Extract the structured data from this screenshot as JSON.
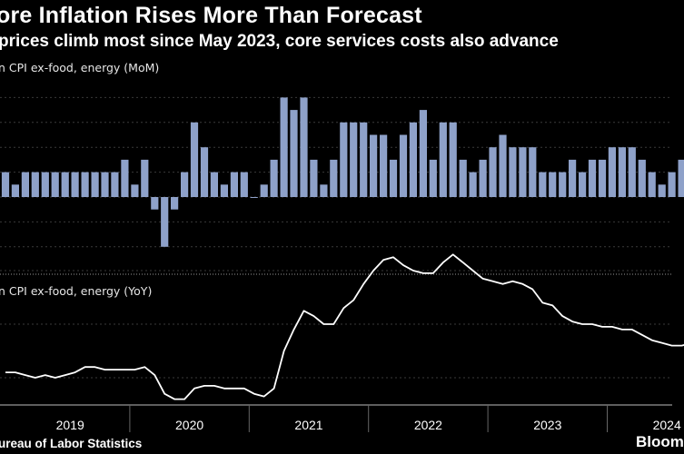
{
  "header": {
    "title": "ore Inflation Rises More Than Forecast",
    "subtitle": "prices climb most since May 2023, core services costs also advance"
  },
  "footer": {
    "source": "ureau of Labor Statistics",
    "brand": "Bloom"
  },
  "colors": {
    "background": "#000000",
    "bar": "#8ea1c9",
    "line": "#ffffff",
    "grid": "#3a3a3a"
  },
  "chart_data": [
    {
      "type": "bar",
      "ylabel": "n CPI ex-food, energy (MoM)",
      "grid": true,
      "x": [
        "2018-12",
        "2019-01",
        "2019-02",
        "2019-03",
        "2019-04",
        "2019-05",
        "2019-06",
        "2019-07",
        "2019-08",
        "2019-09",
        "2019-10",
        "2019-11",
        "2019-12",
        "2020-01",
        "2020-02",
        "2020-03",
        "2020-04",
        "2020-05",
        "2020-06",
        "2020-07",
        "2020-08",
        "2020-09",
        "2020-10",
        "2020-11",
        "2020-12",
        "2021-01",
        "2021-02",
        "2021-03",
        "2021-04",
        "2021-05",
        "2021-06",
        "2021-07",
        "2021-08",
        "2021-09",
        "2021-10",
        "2021-11",
        "2021-12",
        "2022-01",
        "2022-02",
        "2022-03",
        "2022-04",
        "2022-05",
        "2022-06",
        "2022-07",
        "2022-08",
        "2022-09",
        "2022-10",
        "2022-11",
        "2022-12",
        "2023-01",
        "2023-02",
        "2023-03",
        "2023-04",
        "2023-05",
        "2023-06",
        "2023-07",
        "2023-08",
        "2023-09",
        "2023-10",
        "2023-11",
        "2023-12",
        "2024-01",
        "2024-02",
        "2024-03",
        "2024-04",
        "2024-05",
        "2024-06",
        "2024-07",
        "2024-08",
        "2024-09"
      ],
      "values": [
        0.2,
        0.1,
        0.2,
        0.2,
        0.2,
        0.2,
        0.2,
        0.2,
        0.2,
        0.2,
        0.2,
        0.2,
        0.3,
        0.1,
        0.3,
        -0.1,
        -0.4,
        -0.1,
        0.2,
        0.6,
        0.4,
        0.2,
        0.1,
        0.2,
        0.2,
        0.0,
        0.1,
        0.3,
        0.8,
        0.7,
        0.8,
        0.3,
        0.1,
        0.3,
        0.6,
        0.6,
        0.6,
        0.5,
        0.5,
        0.3,
        0.5,
        0.6,
        0.7,
        0.3,
        0.6,
        0.6,
        0.3,
        0.2,
        0.3,
        0.4,
        0.5,
        0.4,
        0.4,
        0.4,
        0.2,
        0.2,
        0.2,
        0.3,
        0.2,
        0.3,
        0.3,
        0.4,
        0.4,
        0.4,
        0.3,
        0.2,
        0.1,
        0.2,
        0.3,
        0.3
      ]
    },
    {
      "type": "line",
      "ylabel": "n CPI ex-food, energy (YoY)",
      "grid": true,
      "x": [
        "2018-12",
        "2019-01",
        "2019-02",
        "2019-03",
        "2019-04",
        "2019-05",
        "2019-06",
        "2019-07",
        "2019-08",
        "2019-09",
        "2019-10",
        "2019-11",
        "2019-12",
        "2020-01",
        "2020-02",
        "2020-03",
        "2020-04",
        "2020-05",
        "2020-06",
        "2020-07",
        "2020-08",
        "2020-09",
        "2020-10",
        "2020-11",
        "2020-12",
        "2021-01",
        "2021-02",
        "2021-03",
        "2021-04",
        "2021-05",
        "2021-06",
        "2021-07",
        "2021-08",
        "2021-09",
        "2021-10",
        "2021-11",
        "2021-12",
        "2022-01",
        "2022-02",
        "2022-03",
        "2022-04",
        "2022-05",
        "2022-06",
        "2022-07",
        "2022-08",
        "2022-09",
        "2022-10",
        "2022-11",
        "2022-12",
        "2023-01",
        "2023-02",
        "2023-03",
        "2023-04",
        "2023-05",
        "2023-06",
        "2023-07",
        "2023-08",
        "2023-09",
        "2023-10",
        "2023-11",
        "2023-12",
        "2024-01",
        "2024-02",
        "2024-03",
        "2024-04",
        "2024-05",
        "2024-06",
        "2024-07",
        "2024-08",
        "2024-09"
      ],
      "values": [
        2.2,
        2.2,
        2.1,
        2.0,
        2.1,
        2.0,
        2.1,
        2.2,
        2.4,
        2.4,
        2.3,
        2.3,
        2.3,
        2.3,
        2.4,
        2.1,
        1.4,
        1.2,
        1.2,
        1.6,
        1.7,
        1.7,
        1.6,
        1.6,
        1.6,
        1.4,
        1.3,
        1.6,
        3.0,
        3.8,
        4.5,
        4.3,
        4.0,
        4.0,
        4.6,
        4.9,
        5.5,
        6.0,
        6.4,
        6.5,
        6.2,
        6.0,
        5.9,
        5.9,
        6.3,
        6.6,
        6.3,
        6.0,
        5.7,
        5.6,
        5.5,
        5.6,
        5.5,
        5.3,
        4.8,
        4.7,
        4.3,
        4.1,
        4.0,
        4.0,
        3.9,
        3.9,
        3.8,
        3.8,
        3.6,
        3.4,
        3.3,
        3.2,
        3.2,
        3.3
      ]
    }
  ],
  "x_axis": {
    "ticks": [
      "2019",
      "2020",
      "2021",
      "2022",
      "2023",
      "2024"
    ]
  }
}
